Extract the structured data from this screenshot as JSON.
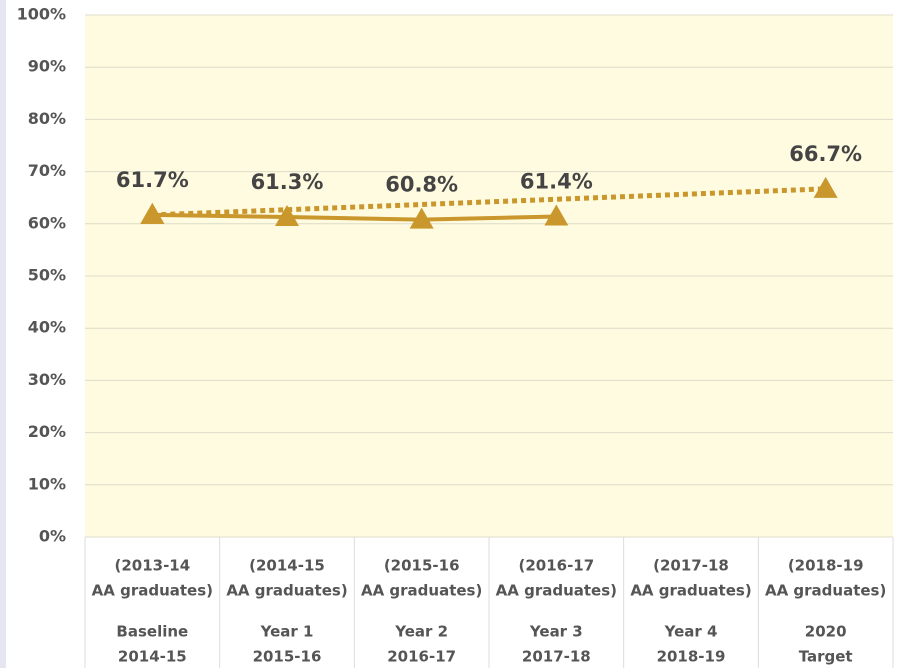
{
  "chart_data": {
    "type": "line",
    "categories": [
      [
        "(2013-14",
        "AA graduates)",
        "Baseline",
        "2014-15"
      ],
      [
        "(2014-15",
        "AA graduates)",
        "Year 1",
        "2015-16"
      ],
      [
        "(2015-16",
        "AA graduates)",
        "Year 2",
        "2016-17"
      ],
      [
        "(2016-17",
        "AA graduates)",
        "Year 3",
        "2017-18"
      ],
      [
        "(2017-18",
        "AA graduates)",
        "Year 4",
        "2018-19"
      ],
      [
        "(2018-19",
        "AA graduates)",
        "2020",
        "Target"
      ]
    ],
    "series": [
      {
        "color": "#c9972c",
        "dash": false,
        "connect_gaps": false,
        "values": [
          61.7,
          61.3,
          60.8,
          61.4,
          null,
          null
        ],
        "value_labels": [
          "61.7%",
          "61.3%",
          "60.8%",
          "61.4%",
          null,
          null
        ]
      },
      {
        "color": "#c9972c",
        "dash": true,
        "connect_gaps": true,
        "values": [
          61.7,
          null,
          null,
          null,
          null,
          66.7
        ],
        "value_labels": [
          null,
          null,
          null,
          null,
          null,
          "66.7%"
        ]
      }
    ],
    "ylim": [
      0,
      100
    ],
    "yticks": [
      {
        "value": 0,
        "label": "0%"
      },
      {
        "value": 10,
        "label": "10%"
      },
      {
        "value": 20,
        "label": "20%"
      },
      {
        "value": 30,
        "label": "30%"
      },
      {
        "value": 40,
        "label": "40%"
      },
      {
        "value": 50,
        "label": "50%"
      },
      {
        "value": 60,
        "label": "60%"
      },
      {
        "value": 70,
        "label": "70%"
      },
      {
        "value": 80,
        "label": "80%"
      },
      {
        "value": 90,
        "label": "90%"
      },
      {
        "value": 100,
        "label": "100%"
      }
    ],
    "grid": true
  }
}
